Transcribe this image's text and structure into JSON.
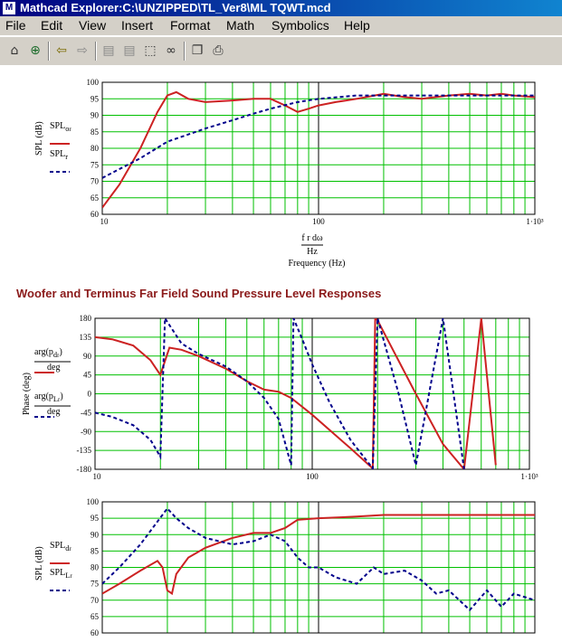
{
  "window": {
    "title": "Mathcad Explorer:C:\\UNZIPPED\\TL_Ver8\\ML TQWT.mcd"
  },
  "menu": {
    "items": [
      "File",
      "Edit",
      "View",
      "Insert",
      "Format",
      "Math",
      "Symbolics",
      "Help"
    ]
  },
  "toolbar": {
    "icons": [
      "home-icon",
      "globe-icon",
      "back-arrow-icon",
      "forward-arrow-icon",
      "page-previous-icon",
      "page-next-icon",
      "find-icon",
      "binoculars-icon",
      "copy-icon",
      "print-icon"
    ]
  },
  "section": {
    "heading": "Woofer and Terminus Far Field Sound Pressure Level Responses"
  },
  "charts": {
    "top": {
      "ylabel": "SPL (dB)",
      "legend": [
        {
          "label": "SPL",
          "sub": "o",
          "subsub": "r",
          "color": "#cc2222",
          "style": "solid"
        },
        {
          "label": "SPL",
          "sub": "r",
          "color": "#00008b",
          "style": "dashed"
        }
      ],
      "xunit_num": "f r dω",
      "xunit_den": "Hz",
      "xlabel": "Frequency (Hz)"
    },
    "middle": {
      "ylabel": "Phase (deg)",
      "legend": [
        {
          "label": "arg(p",
          "sub": "d",
          "subsub": "r",
          "tail": ")",
          "den": "deg",
          "color": "#cc2222",
          "style": "solid"
        },
        {
          "label": "arg(p",
          "sub": "L",
          "subsub": "r",
          "tail": ")",
          "den": "deg",
          "color": "#00008b",
          "style": "dashed"
        }
      ]
    },
    "bottom": {
      "ylabel": "SPL (dB)",
      "legend": [
        {
          "label": "SPL",
          "sub": "d",
          "subsub": "r",
          "color": "#cc2222",
          "style": "solid"
        },
        {
          "label": "SPL",
          "sub": "L",
          "subsub": "r",
          "color": "#00008b",
          "style": "dashed"
        }
      ]
    }
  },
  "chart_data": [
    {
      "type": "line",
      "xscale": "log",
      "xlim": [
        10,
        1000
      ],
      "ylim": [
        60,
        100
      ],
      "yticks": [
        60,
        65,
        70,
        75,
        80,
        85,
        90,
        95,
        100
      ],
      "xticks": [
        "10",
        "100",
        "1·10³"
      ],
      "xlabel": "Frequency (Hz)",
      "ylabel": "SPL (dB)",
      "grid": true,
      "series": [
        {
          "name": "SPL o r",
          "x": [
            10,
            12,
            15,
            18,
            20,
            22,
            25,
            30,
            40,
            50,
            60,
            70,
            80,
            90,
            100,
            120,
            150,
            200,
            250,
            300,
            400,
            500,
            600,
            700,
            800,
            1000
          ],
          "y": [
            62,
            69,
            80,
            91,
            96,
            97,
            95,
            94,
            94.5,
            95,
            95,
            93,
            91,
            92,
            93,
            94,
            95,
            96.5,
            95.5,
            95,
            96,
            96.5,
            96,
            96.5,
            96,
            95.5
          ]
        },
        {
          "name": "SPL r",
          "x": [
            10,
            15,
            20,
            30,
            40,
            50,
            60,
            80,
            100,
            150,
            200,
            300,
            500,
            1000
          ],
          "y": [
            71,
            77,
            82,
            86,
            88.5,
            90.5,
            92,
            94,
            95,
            96,
            96,
            96,
            96,
            96
          ]
        }
      ]
    },
    {
      "type": "line",
      "xscale": "log",
      "xlim": [
        10,
        1000
      ],
      "ylim": [
        -180,
        180
      ],
      "yticks": [
        -180,
        -135,
        -90,
        -45,
        0,
        45,
        90,
        135,
        180
      ],
      "xticks": [
        "10",
        "100",
        "1·10³"
      ],
      "ylabel": "Phase (deg)",
      "grid": true,
      "series": [
        {
          "name": "arg(p d r)/deg",
          "x": [
            10,
            12,
            15,
            18,
            20,
            22,
            25,
            30,
            40,
            50,
            60,
            70,
            80,
            100,
            150,
            190,
            195,
            200,
            300,
            400,
            500,
            600,
            700
          ],
          "y": [
            135,
            130,
            115,
            80,
            45,
            110,
            105,
            90,
            60,
            30,
            10,
            5,
            -10,
            -50,
            -130,
            -178,
            180,
            175,
            0,
            -120,
            -180,
            180,
            -170
          ]
        },
        {
          "name": "arg(p L r)/deg",
          "x": [
            10,
            12,
            15,
            18,
            20,
            21,
            25,
            30,
            40,
            50,
            60,
            70,
            80,
            82,
            90,
            100,
            120,
            150,
            190,
            200,
            250,
            300,
            400,
            500
          ],
          "y": [
            -45,
            -55,
            -75,
            -110,
            -150,
            180,
            120,
            95,
            65,
            30,
            -10,
            -60,
            -170,
            180,
            130,
            70,
            -20,
            -110,
            -178,
            180,
            0,
            -170,
            180,
            -180
          ]
        }
      ]
    },
    {
      "type": "line",
      "xscale": "log",
      "xlim": [
        10,
        1000
      ],
      "ylim": [
        60,
        100
      ],
      "yticks": [
        60,
        65,
        70,
        75,
        80,
        85,
        90,
        95,
        100
      ],
      "ylabel": "SPL (dB)",
      "grid": true,
      "series": [
        {
          "name": "SPL d r",
          "x": [
            10,
            12,
            15,
            18,
            19,
            20,
            21,
            22,
            25,
            30,
            40,
            50,
            60,
            70,
            80,
            100,
            150,
            200,
            300,
            500,
            1000
          ],
          "y": [
            72,
            75,
            79,
            82,
            80,
            73,
            72,
            78,
            83,
            86,
            89,
            90.5,
            90.5,
            92,
            94.5,
            95,
            95.5,
            96,
            96,
            96,
            96
          ]
        },
        {
          "name": "SPL L r",
          "x": [
            10,
            12,
            15,
            18,
            20,
            22,
            25,
            30,
            40,
            50,
            60,
            70,
            80,
            90,
            100,
            120,
            150,
            180,
            200,
            250,
            300,
            350,
            400,
            500,
            600,
            700,
            800,
            1000
          ],
          "y": [
            75,
            80,
            87,
            94,
            98,
            95,
            92,
            89,
            87,
            88,
            90,
            88,
            83,
            80,
            80,
            77,
            75,
            80,
            78,
            79,
            76,
            72,
            73,
            67,
            73,
            68,
            72,
            70
          ]
        }
      ]
    }
  ]
}
